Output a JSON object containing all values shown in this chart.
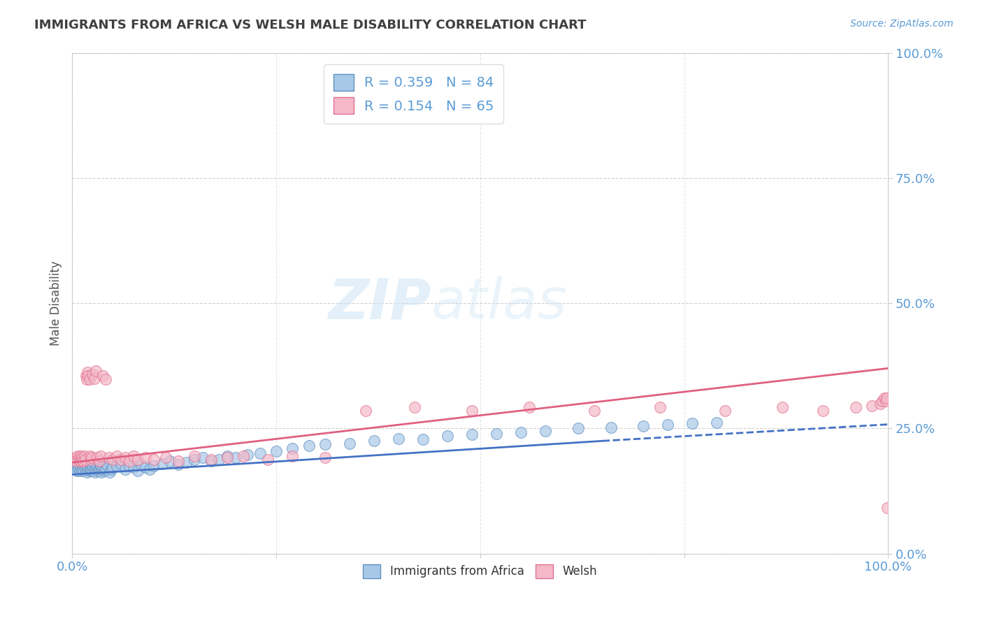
{
  "title": "IMMIGRANTS FROM AFRICA VS WELSH MALE DISABILITY CORRELATION CHART",
  "source_text": "Source: ZipAtlas.com",
  "ylabel": "Male Disability",
  "xlim": [
    0.0,
    1.0
  ],
  "ylim": [
    0.0,
    1.0
  ],
  "ytick_vals": [
    0.0,
    0.25,
    0.5,
    0.75,
    1.0
  ],
  "ytick_labels": [
    "0.0%",
    "25.0%",
    "50.0%",
    "75.0%",
    "100.0%"
  ],
  "xtick_vals": [
    0.0,
    0.25,
    0.5,
    0.75,
    1.0
  ],
  "xtick_labels": [
    "0.0%",
    "",
    "",
    "",
    "100.0%"
  ],
  "grid_color": "#cccccc",
  "background_color": "#ffffff",
  "blue_color": "#a8c8e8",
  "pink_color": "#f4b8c8",
  "blue_edge_color": "#6090c0",
  "pink_edge_color": "#e07090",
  "blue_line_color": "#4472c4",
  "pink_line_color": "#e06080",
  "axis_label_color": "#5b9bd5",
  "title_color": "#404040",
  "legend_R1": "R = 0.359",
  "legend_N1": "N = 84",
  "legend_R2": "R = 0.154",
  "legend_N2": "N = 65",
  "series1_label": "Immigrants from Africa",
  "series2_label": "Welsh",
  "watermark_zip": "ZIP",
  "watermark_atlas": "atlas",
  "blue_scatter_x": [
    0.002,
    0.004,
    0.005,
    0.006,
    0.007,
    0.008,
    0.009,
    0.01,
    0.011,
    0.012,
    0.013,
    0.014,
    0.015,
    0.016,
    0.017,
    0.018,
    0.019,
    0.02,
    0.021,
    0.022,
    0.023,
    0.024,
    0.025,
    0.026,
    0.027,
    0.028,
    0.029,
    0.03,
    0.031,
    0.032,
    0.033,
    0.034,
    0.035,
    0.036,
    0.037,
    0.038,
    0.039,
    0.04,
    0.042,
    0.044,
    0.046,
    0.048,
    0.05,
    0.055,
    0.06,
    0.065,
    0.07,
    0.075,
    0.08,
    0.085,
    0.09,
    0.095,
    0.1,
    0.11,
    0.12,
    0.13,
    0.14,
    0.15,
    0.16,
    0.17,
    0.18,
    0.19,
    0.2,
    0.215,
    0.23,
    0.25,
    0.27,
    0.29,
    0.31,
    0.34,
    0.37,
    0.4,
    0.43,
    0.46,
    0.49,
    0.52,
    0.55,
    0.58,
    0.62,
    0.66,
    0.7,
    0.73,
    0.76,
    0.79
  ],
  "blue_scatter_y": [
    0.175,
    0.168,
    0.172,
    0.165,
    0.178,
    0.17,
    0.165,
    0.172,
    0.168,
    0.175,
    0.17,
    0.165,
    0.172,
    0.168,
    0.175,
    0.162,
    0.168,
    0.172,
    0.165,
    0.17,
    0.168,
    0.175,
    0.165,
    0.172,
    0.168,
    0.162,
    0.175,
    0.168,
    0.172,
    0.165,
    0.17,
    0.168,
    0.175,
    0.162,
    0.168,
    0.172,
    0.165,
    0.17,
    0.168,
    0.175,
    0.162,
    0.168,
    0.172,
    0.175,
    0.18,
    0.168,
    0.175,
    0.172,
    0.165,
    0.178,
    0.172,
    0.168,
    0.175,
    0.18,
    0.185,
    0.178,
    0.182,
    0.188,
    0.192,
    0.185,
    0.188,
    0.195,
    0.192,
    0.198,
    0.2,
    0.205,
    0.21,
    0.215,
    0.218,
    0.22,
    0.225,
    0.23,
    0.228,
    0.235,
    0.238,
    0.24,
    0.242,
    0.245,
    0.25,
    0.252,
    0.255,
    0.258,
    0.26,
    0.262
  ],
  "pink_scatter_x": [
    0.002,
    0.004,
    0.005,
    0.007,
    0.008,
    0.009,
    0.01,
    0.011,
    0.012,
    0.013,
    0.014,
    0.015,
    0.016,
    0.017,
    0.018,
    0.019,
    0.02,
    0.021,
    0.022,
    0.023,
    0.024,
    0.025,
    0.027,
    0.029,
    0.031,
    0.033,
    0.035,
    0.038,
    0.041,
    0.045,
    0.05,
    0.055,
    0.06,
    0.065,
    0.07,
    0.075,
    0.08,
    0.09,
    0.1,
    0.115,
    0.13,
    0.15,
    0.17,
    0.19,
    0.21,
    0.24,
    0.27,
    0.31,
    0.36,
    0.42,
    0.49,
    0.56,
    0.64,
    0.72,
    0.8,
    0.87,
    0.92,
    0.96,
    0.98,
    0.99,
    0.993,
    0.995,
    0.997,
    0.998,
    0.999
  ],
  "pink_scatter_y": [
    0.188,
    0.192,
    0.185,
    0.195,
    0.188,
    0.192,
    0.185,
    0.195,
    0.188,
    0.192,
    0.185,
    0.195,
    0.188,
    0.355,
    0.348,
    0.362,
    0.355,
    0.348,
    0.195,
    0.188,
    0.192,
    0.358,
    0.35,
    0.365,
    0.192,
    0.185,
    0.195,
    0.355,
    0.348,
    0.192,
    0.188,
    0.195,
    0.188,
    0.192,
    0.185,
    0.195,
    0.188,
    0.192,
    0.188,
    0.192,
    0.185,
    0.195,
    0.188,
    0.192,
    0.195,
    0.188,
    0.195,
    0.192,
    0.285,
    0.292,
    0.285,
    0.292,
    0.285,
    0.292,
    0.285,
    0.292,
    0.285,
    0.292,
    0.295,
    0.3,
    0.305,
    0.31,
    0.305,
    0.31,
    0.092
  ],
  "blue_trend_x": [
    0.0,
    0.65,
    1.0
  ],
  "blue_trend_y": [
    0.158,
    0.225,
    0.225
  ],
  "blue_trend_style": [
    "solid",
    "dashed"
  ],
  "pink_trend_x": [
    0.0,
    1.0
  ],
  "pink_trend_y": [
    0.182,
    0.37
  ]
}
